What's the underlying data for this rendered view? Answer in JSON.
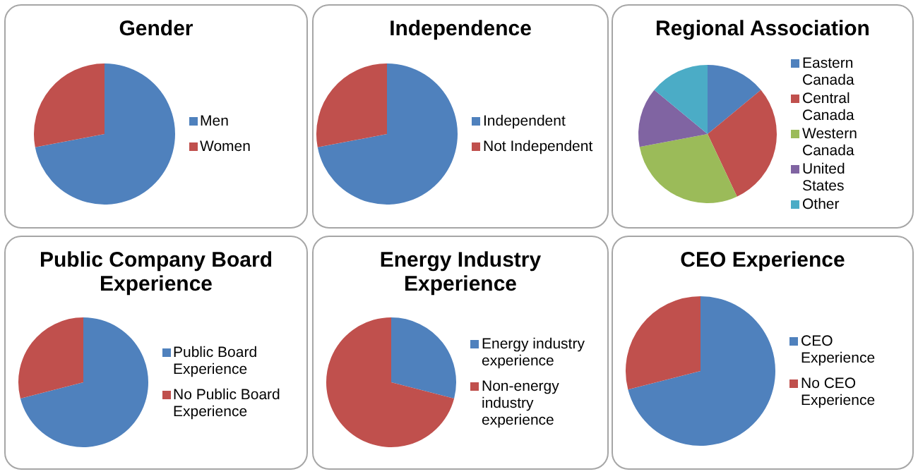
{
  "chart_data": [
    {
      "type": "pie",
      "title": "Gender",
      "categories": [
        "Men",
        "Women"
      ],
      "values": [
        72,
        28
      ],
      "colors": [
        "#4f81bd",
        "#c0504d"
      ],
      "legend": "right"
    },
    {
      "type": "pie",
      "title": "Independence",
      "categories": [
        "Independent",
        "Not Independent"
      ],
      "values": [
        72,
        28
      ],
      "colors": [
        "#4f81bd",
        "#c0504d"
      ],
      "legend": "right"
    },
    {
      "type": "pie",
      "title": "Regional Association",
      "categories": [
        "Eastern Canada",
        "Central Canada",
        "Western Canada",
        "United States",
        "Other"
      ],
      "values": [
        14,
        29,
        29,
        14,
        14
      ],
      "colors": [
        "#4f81bd",
        "#c0504d",
        "#9bbb59",
        "#8064a2",
        "#4bacc6"
      ],
      "legend": "right"
    },
    {
      "type": "pie",
      "title": "Public Company Board Experience",
      "categories": [
        "Public Board Experience",
        "No Public Board Experience"
      ],
      "values": [
        71,
        29
      ],
      "colors": [
        "#4f81bd",
        "#c0504d"
      ],
      "legend": "right"
    },
    {
      "type": "pie",
      "title": "Energy Industry Experience",
      "categories": [
        "Energy industry experience",
        "Non-energy industry experience"
      ],
      "values": [
        29,
        71
      ],
      "colors": [
        "#4f81bd",
        "#c0504d"
      ],
      "legend": "right"
    },
    {
      "type": "pie",
      "title": "CEO Experience",
      "categories": [
        "CEO Experience",
        "No CEO Experience"
      ],
      "values": [
        71,
        29
      ],
      "colors": [
        "#4f81bd",
        "#c0504d"
      ],
      "legend": "right"
    }
  ]
}
